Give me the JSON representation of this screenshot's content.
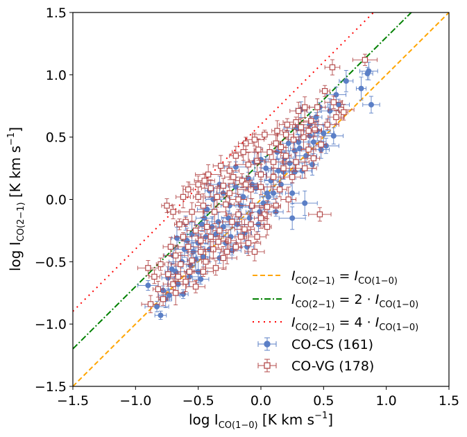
{
  "chart_data": {
    "type": "scatter",
    "xlabel": "log I",
    "xlabel_sub": "CO(1−0)",
    "xlabel_unit": " [K km s",
    "ylabel": "log I",
    "ylabel_sub": "CO(2−1)",
    "ylabel_unit": " [K km s",
    "unit_sup": "−1",
    "unit_close": "]",
    "xlim": [
      -1.5,
      1.5
    ],
    "ylim": [
      -1.5,
      1.5
    ],
    "xticks": [
      -1.5,
      -1.0,
      -0.5,
      0.0,
      0.5,
      1.0,
      1.5
    ],
    "yticks": [
      -1.5,
      -1.0,
      -0.5,
      0.0,
      0.5,
      1.0,
      1.5
    ],
    "xtick_labels": [
      "−1.5",
      "−1.0",
      "−0.5",
      "0.0",
      "0.5",
      "1.0",
      "1.5"
    ],
    "ytick_labels": [
      "−1.5",
      "−1.0",
      "−0.5",
      "0.0",
      "0.5",
      "1.0",
      "1.5"
    ],
    "grid": false,
    "legend_position": "bottom-right",
    "lines": [
      {
        "label": "I_CO(2−1) = I_CO(1−0)",
        "offset": 0.0,
        "color": "#ffa500",
        "style": "dashed",
        "legend_lhs": "I",
        "legend_lhs_sub": "CO(2−1)",
        "legend_eq": " = ",
        "legend_rhs": "I",
        "legend_rhs_sub": "CO(1−0)"
      },
      {
        "label": "I_CO(2−1) = 2 · I_CO(1−0)",
        "offset": 0.301,
        "color": "#008000",
        "style": "dashdot",
        "legend_lhs": "I",
        "legend_lhs_sub": "CO(2−1)",
        "legend_eq": " = 2 · ",
        "legend_rhs": "I",
        "legend_rhs_sub": "CO(1−0)"
      },
      {
        "label": "I_CO(2−1) = 4 · I_CO(1−0)",
        "offset": 0.602,
        "color": "#ff0000",
        "style": "dotted",
        "legend_lhs": "I",
        "legend_lhs_sub": "CO(2−1)",
        "legend_eq": " = 4 · ",
        "legend_rhs": "I",
        "legend_rhs_sub": "CO(1−0)"
      }
    ],
    "series": [
      {
        "name": "CO-CS (161)",
        "color": "#5b7fc6",
        "marker": "filled-circle",
        "points": [
          [
            0.86,
            1.03
          ],
          [
            0.85,
            1.01
          ],
          [
            0.88,
            0.76
          ],
          [
            0.8,
            0.89
          ],
          [
            0.6,
            0.84
          ],
          [
            0.68,
            0.95
          ],
          [
            0.47,
            0.74
          ],
          [
            0.53,
            0.6
          ],
          [
            0.62,
            0.76
          ],
          [
            0.58,
            0.51
          ],
          [
            0.44,
            0.66
          ],
          [
            0.39,
            0.6
          ],
          [
            0.32,
            0.72
          ],
          [
            0.29,
            0.57
          ],
          [
            0.48,
            0.4
          ],
          [
            0.36,
            0.35
          ],
          [
            0.22,
            0.45
          ],
          [
            0.19,
            0.33
          ],
          [
            0.27,
            0.22
          ],
          [
            0.41,
            0.28
          ],
          [
            0.13,
            0.38
          ],
          [
            0.04,
            0.25
          ],
          [
            0.08,
            0.15
          ],
          [
            0.1,
            0.05
          ],
          [
            0.16,
            0.12
          ],
          [
            -0.05,
            0.3
          ],
          [
            -0.1,
            0.17
          ],
          [
            -0.04,
            0.09
          ],
          [
            -0.14,
            0.02
          ],
          [
            -0.2,
            0.1
          ],
          [
            0.02,
            -0.03
          ],
          [
            -0.08,
            -0.06
          ],
          [
            -0.17,
            -0.12
          ],
          [
            -0.25,
            -0.05
          ],
          [
            -0.3,
            0.05
          ],
          [
            -0.2,
            0.26
          ],
          [
            0.25,
            0.05
          ],
          [
            0.35,
            -0.03
          ],
          [
            0.25,
            -0.15
          ],
          [
            -0.34,
            -0.18
          ],
          [
            -0.43,
            -0.08
          ],
          [
            -0.47,
            -0.2
          ],
          [
            -0.36,
            -0.28
          ],
          [
            -0.28,
            -0.35
          ],
          [
            -0.55,
            -0.28
          ],
          [
            -0.6,
            -0.19
          ],
          [
            -0.5,
            -0.35
          ],
          [
            -0.41,
            -0.4
          ],
          [
            -0.52,
            -0.48
          ],
          [
            -0.61,
            -0.4
          ],
          [
            -0.67,
            -0.31
          ],
          [
            -0.63,
            -0.5
          ],
          [
            -0.71,
            -0.56
          ],
          [
            -0.57,
            -0.62
          ],
          [
            -0.66,
            -0.68
          ],
          [
            -0.74,
            -0.63
          ],
          [
            -0.78,
            -0.73
          ],
          [
            -0.62,
            -0.76
          ],
          [
            -0.5,
            -0.58
          ],
          [
            -0.33,
            -0.47
          ],
          [
            -0.23,
            -0.41
          ],
          [
            -0.13,
            -0.27
          ],
          [
            -0.02,
            -0.2
          ],
          [
            -0.11,
            -0.38
          ],
          [
            -0.83,
            -0.86
          ],
          [
            -0.8,
            -0.93
          ],
          [
            -0.9,
            -0.69
          ],
          [
            -0.48,
            -0.64
          ],
          [
            -0.7,
            -0.45
          ],
          [
            -0.56,
            -0.53
          ],
          [
            -0.45,
            -0.15
          ],
          [
            -0.38,
            0.0
          ],
          [
            -0.3,
            -0.22
          ],
          [
            -0.26,
            -0.15
          ],
          [
            -0.16,
            -0.05
          ],
          [
            -0.07,
            0.12
          ],
          [
            0.0,
            0.2
          ],
          [
            0.05,
            0.05
          ],
          [
            0.18,
            0.22
          ],
          [
            0.31,
            0.41
          ],
          [
            0.33,
            0.23
          ],
          [
            0.42,
            0.46
          ],
          [
            0.5,
            0.53
          ],
          [
            0.45,
            0.55
          ],
          [
            0.55,
            0.71
          ],
          [
            0.52,
            0.43
          ],
          [
            0.39,
            0.51
          ],
          [
            0.27,
            0.39
          ],
          [
            0.23,
            0.29
          ],
          [
            0.14,
            0.23
          ],
          [
            0.06,
            0.02
          ],
          [
            -0.01,
            -0.1
          ],
          [
            -0.09,
            -0.15
          ],
          [
            -0.19,
            -0.2
          ],
          [
            -0.24,
            -0.3
          ],
          [
            -0.39,
            -0.22
          ],
          [
            -0.44,
            -0.3
          ],
          [
            -0.59,
            -0.33
          ],
          [
            -0.68,
            -0.58
          ],
          [
            -0.73,
            -0.77
          ],
          [
            -0.76,
            -0.8
          ],
          [
            0.12,
            -0.1
          ],
          [
            -0.33,
            0.12
          ],
          [
            -0.41,
            0.07
          ],
          [
            -0.54,
            -0.42
          ],
          [
            -0.46,
            -0.46
          ],
          [
            0.0,
            0.32
          ],
          [
            0.3,
            0.46
          ]
        ]
      },
      {
        "name": "CO-VG (178)",
        "color": "#b34a4a",
        "marker": "open-square",
        "points": [
          [
            0.83,
            1.12
          ],
          [
            0.57,
            1.06
          ],
          [
            0.64,
            0.72
          ],
          [
            0.51,
            0.87
          ],
          [
            0.58,
            0.78
          ],
          [
            0.45,
            0.74
          ],
          [
            0.4,
            0.63
          ],
          [
            0.35,
            0.74
          ],
          [
            0.3,
            0.71
          ],
          [
            0.28,
            0.62
          ],
          [
            0.21,
            0.6
          ],
          [
            0.2,
            0.52
          ],
          [
            0.13,
            0.55
          ],
          [
            0.03,
            0.52
          ],
          [
            -0.05,
            0.48
          ],
          [
            -0.12,
            0.45
          ],
          [
            -0.14,
            0.38
          ],
          [
            -0.2,
            0.35
          ],
          [
            -0.1,
            0.28
          ],
          [
            -0.03,
            0.31
          ],
          [
            0.07,
            0.38
          ],
          [
            0.16,
            0.42
          ],
          [
            0.26,
            0.48
          ],
          [
            0.34,
            0.5
          ],
          [
            0.43,
            0.56
          ],
          [
            0.38,
            0.4
          ],
          [
            0.28,
            0.3
          ],
          [
            0.18,
            0.25
          ],
          [
            0.1,
            0.18
          ],
          [
            0.0,
            0.2
          ],
          [
            -0.08,
            0.08
          ],
          [
            -0.15,
            0.15
          ],
          [
            -0.25,
            0.23
          ],
          [
            -0.3,
            0.11
          ],
          [
            -0.35,
            0.02
          ],
          [
            -0.4,
            0.09
          ],
          [
            -0.45,
            0.15
          ],
          [
            -0.5,
            0.02
          ],
          [
            -0.46,
            -0.05
          ],
          [
            -0.37,
            -0.1
          ],
          [
            -0.28,
            -0.04
          ],
          [
            -0.18,
            0.0
          ],
          [
            -0.07,
            -0.05
          ],
          [
            0.03,
            -0.12
          ],
          [
            0.12,
            -0.05
          ],
          [
            0.22,
            0.0
          ],
          [
            -0.55,
            -0.1
          ],
          [
            -0.6,
            -0.18
          ],
          [
            -0.52,
            -0.25
          ],
          [
            -0.43,
            -0.22
          ],
          [
            -0.33,
            -0.25
          ],
          [
            -0.23,
            -0.18
          ],
          [
            -0.13,
            -0.24
          ],
          [
            -0.03,
            -0.3
          ],
          [
            0.05,
            -0.22
          ],
          [
            -0.62,
            -0.3
          ],
          [
            -0.58,
            -0.38
          ],
          [
            -0.48,
            -0.33
          ],
          [
            -0.38,
            -0.4
          ],
          [
            -0.3,
            -0.47
          ],
          [
            -0.2,
            -0.38
          ],
          [
            -0.1,
            -0.35
          ],
          [
            -0.68,
            -0.45
          ],
          [
            -0.64,
            -0.52
          ],
          [
            -0.55,
            -0.49
          ],
          [
            -0.46,
            -0.58
          ],
          [
            -0.36,
            -0.55
          ],
          [
            -0.74,
            -0.6
          ],
          [
            -0.7,
            -0.68
          ],
          [
            -0.6,
            -0.66
          ],
          [
            -0.8,
            -0.52
          ],
          [
            -0.85,
            -0.62
          ],
          [
            -0.78,
            -0.8
          ],
          [
            -0.88,
            -0.84
          ],
          [
            -0.68,
            -0.75
          ],
          [
            -0.57,
            -0.58
          ],
          [
            -0.65,
            -0.2
          ],
          [
            -0.7,
            -0.1
          ],
          [
            -0.75,
            -0.05
          ],
          [
            -0.58,
            0.08
          ],
          [
            -0.62,
            0.02
          ],
          [
            -0.5,
            0.12
          ],
          [
            -0.42,
            0.2
          ],
          [
            -0.32,
            0.27
          ],
          [
            -0.22,
            0.18
          ],
          [
            -0.12,
            0.12
          ],
          [
            0.0,
            0.1
          ],
          [
            0.1,
            0.3
          ],
          [
            0.2,
            0.35
          ],
          [
            0.25,
            0.18
          ],
          [
            0.35,
            0.25
          ],
          [
            0.42,
            0.33
          ],
          [
            0.48,
            0.44
          ],
          [
            0.53,
            0.6
          ],
          [
            0.6,
            0.66
          ],
          [
            0.66,
            0.7
          ],
          [
            0.47,
            -0.12
          ],
          [
            0.12,
            0.45
          ],
          [
            0.32,
            0.58
          ],
          [
            -0.02,
            0.4
          ],
          [
            -0.25,
            0.05
          ],
          [
            -0.18,
            -0.12
          ],
          [
            -0.08,
            -0.2
          ],
          [
            0.05,
            -0.06
          ],
          [
            0.15,
            0.08
          ],
          [
            -0.4,
            -0.3
          ],
          [
            -0.48,
            -0.42
          ],
          [
            -0.26,
            -0.33
          ],
          [
            -0.16,
            -0.3
          ],
          [
            -0.05,
            -0.42
          ],
          [
            -0.72,
            -0.38
          ],
          [
            -0.82,
            -0.72
          ],
          [
            -0.66,
            -0.62
          ],
          [
            -0.52,
            -0.7
          ],
          [
            -0.44,
            -0.5
          ],
          [
            -0.34,
            -0.34
          ],
          [
            -0.27,
            -0.42
          ],
          [
            0.0,
            -0.15
          ],
          [
            -0.9,
            -0.55
          ],
          [
            0.38,
            0.55
          ]
        ]
      }
    ]
  }
}
